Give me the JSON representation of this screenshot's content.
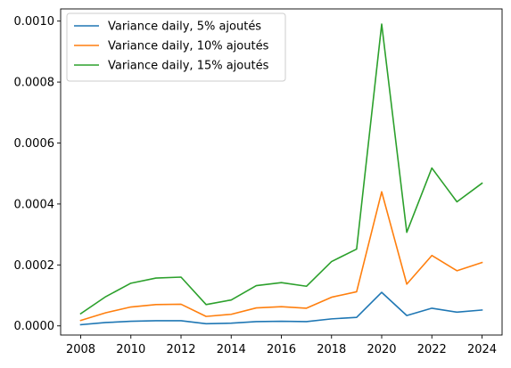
{
  "chart_data": {
    "type": "line",
    "title": "",
    "xlabel": "",
    "ylabel": "",
    "x": [
      2008,
      2009,
      2010,
      2011,
      2012,
      2013,
      2014,
      2015,
      2016,
      2017,
      2018,
      2019,
      2020,
      2021,
      2022,
      2023,
      2024
    ],
    "xlim": [
      2007.2,
      2024.8
    ],
    "ylim": [
      -3e-05,
      0.00104
    ],
    "xticks": [
      2008,
      2010,
      2012,
      2014,
      2016,
      2018,
      2020,
      2022,
      2024
    ],
    "xtick_labels": [
      "2008",
      "2010",
      "2012",
      "2014",
      "2016",
      "2018",
      "2020",
      "2022",
      "2024"
    ],
    "yticks": [
      0,
      0.0002,
      0.0004,
      0.0006,
      0.0008,
      0.001
    ],
    "ytick_labels": [
      "0.0000",
      "0.0002",
      "0.0004",
      "0.0006",
      "0.0008",
      "0.0010"
    ],
    "grid": false,
    "legend_position": "top-left",
    "series": [
      {
        "name": "Variance daily, 5% ajoutés",
        "color": "#1f77b4",
        "values": [
          4e-06,
          1.1e-05,
          1.5e-05,
          1.7e-05,
          1.7e-05,
          7e-06,
          9e-06,
          1.4e-05,
          1.5e-05,
          1.4e-05,
          2.3e-05,
          2.8e-05,
          0.00011,
          3.4e-05,
          5.8e-05,
          4.5e-05,
          5.2e-05
        ]
      },
      {
        "name": "Variance daily, 10% ajoutés",
        "color": "#ff7f0e",
        "values": [
          1.8e-05,
          4.3e-05,
          6.2e-05,
          7e-05,
          7.1e-05,
          3.1e-05,
          3.8e-05,
          5.9e-05,
          6.3e-05,
          5.8e-05,
          9.4e-05,
          0.000112,
          0.00044,
          0.000137,
          0.000231,
          0.000181,
          0.000208
        ]
      },
      {
        "name": "Variance daily, 15% ajoutés",
        "color": "#2ca02c",
        "values": [
          4e-05,
          9.6e-05,
          0.00014,
          0.000157,
          0.00016,
          7e-05,
          8.5e-05,
          0.000132,
          0.000142,
          0.00013,
          0.000211,
          0.000252,
          0.00099,
          0.000307,
          0.000518,
          0.000407,
          0.000468
        ]
      }
    ]
  }
}
